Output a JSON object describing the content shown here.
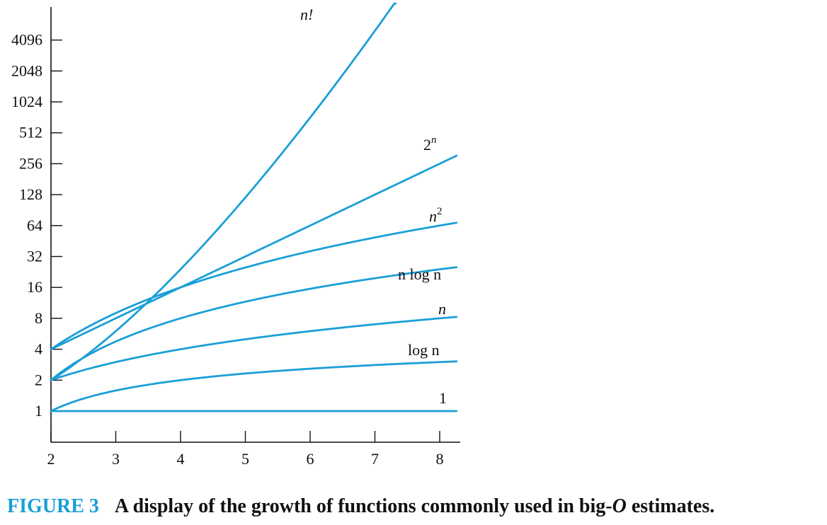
{
  "chart_data": {
    "type": "line",
    "x_ticks": [
      "2",
      "3",
      "4",
      "5",
      "6",
      "7",
      "8"
    ],
    "y_ticks": [
      "1",
      "2",
      "4",
      "8",
      "16",
      "32",
      "64",
      "128",
      "256",
      "512",
      "1024",
      "2048",
      "4096"
    ],
    "y_scale": "log2",
    "xlim": [
      2,
      8.27
    ],
    "ylim": [
      0.5,
      8192
    ],
    "line_color": "#1a9fd6",
    "series": [
      {
        "key": "one",
        "label_main": "1",
        "label_sup": "",
        "label_italic": false,
        "fn": "1"
      },
      {
        "key": "logn",
        "label_main": "log n",
        "label_sup": "",
        "label_italic": false,
        "fn": "log n"
      },
      {
        "key": "n",
        "label_main": "n",
        "label_sup": "",
        "label_italic": true,
        "fn": "n"
      },
      {
        "key": "nlogn",
        "label_main": "n log n",
        "label_sup": "",
        "label_italic": false,
        "fn": "n log n"
      },
      {
        "key": "n2",
        "label_main": "n",
        "label_sup": "2",
        "label_italic": true,
        "fn": "n^2"
      },
      {
        "key": "2n",
        "label_main": "2",
        "label_sup": "n",
        "label_italic": false,
        "fn": "2^n"
      },
      {
        "key": "fact",
        "label_main": "n!",
        "label_sup": "",
        "label_italic": true,
        "fn": "n!"
      }
    ]
  },
  "caption": {
    "number": "FIGURE 3",
    "text_before": "A display of the growth of functions commonly used in big-",
    "text_italic": "O",
    "text_after": " estimates."
  }
}
